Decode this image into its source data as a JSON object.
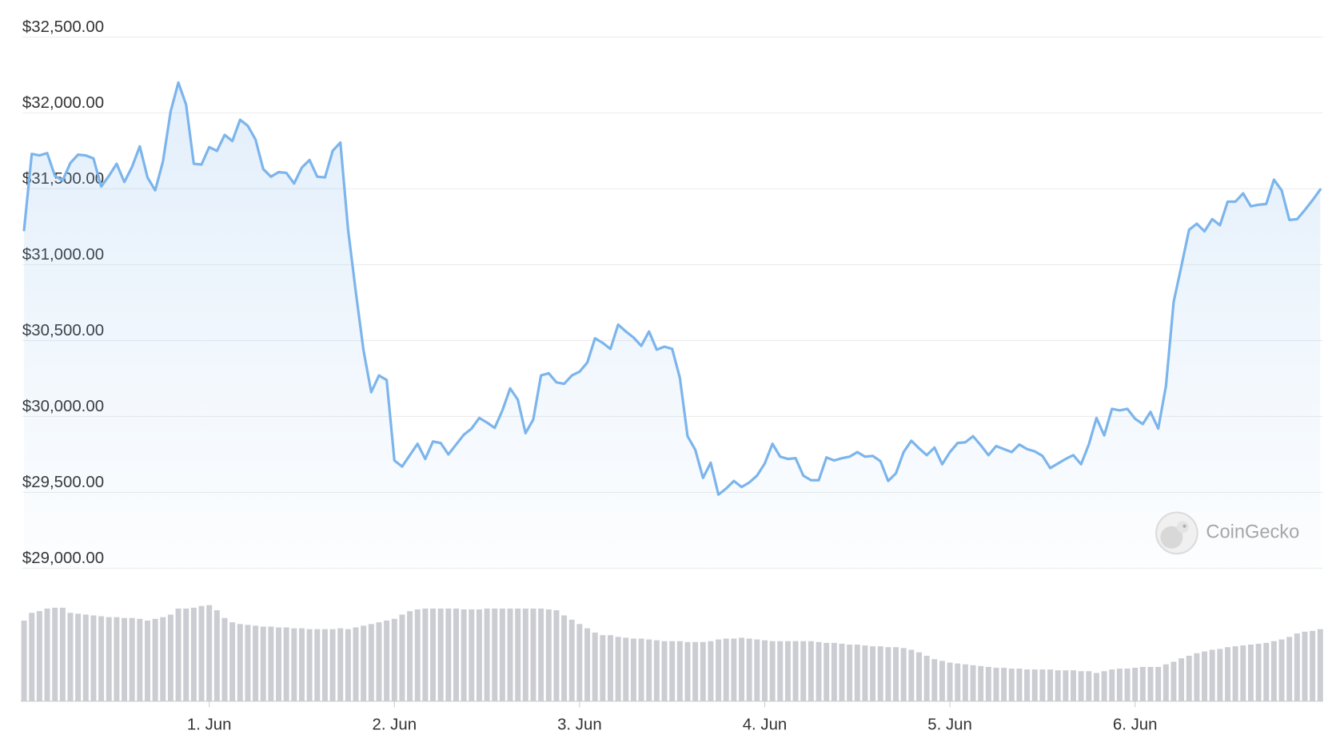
{
  "chart_data": [
    {
      "type": "line",
      "area": true,
      "grid": true,
      "color": "#7cb5ec",
      "watermark": "CoinGecko",
      "ylim": [
        29000,
        32500
      ],
      "yticks": [
        {
          "value": 29000,
          "label": "$29,000.00"
        },
        {
          "value": 29500,
          "label": "$29,500.00"
        },
        {
          "value": 30000,
          "label": "$30,000.00"
        },
        {
          "value": 30500,
          "label": "$30,500.00"
        },
        {
          "value": 31000,
          "label": "$31,000.00"
        },
        {
          "value": 31500,
          "label": "$31,500.00"
        },
        {
          "value": 32000,
          "label": "$32,000.00"
        },
        {
          "value": 32500,
          "label": "$32,500.00"
        }
      ],
      "categories": [
        null,
        null,
        null,
        null,
        null,
        null,
        null,
        null,
        null,
        null,
        null,
        null,
        null,
        null,
        null,
        null,
        null,
        null,
        null,
        null,
        null,
        null,
        null,
        null,
        "1. Jun",
        null,
        null,
        null,
        null,
        null,
        null,
        null,
        null,
        null,
        null,
        null,
        null,
        null,
        null,
        null,
        null,
        null,
        null,
        null,
        null,
        null,
        null,
        null,
        "2. Jun",
        null,
        null,
        null,
        null,
        null,
        null,
        null,
        null,
        null,
        null,
        null,
        null,
        null,
        null,
        null,
        null,
        null,
        null,
        null,
        null,
        null,
        null,
        null,
        "3. Jun",
        null,
        null,
        null,
        null,
        null,
        null,
        null,
        null,
        null,
        null,
        null,
        null,
        null,
        null,
        null,
        null,
        null,
        null,
        null,
        null,
        null,
        null,
        null,
        "4. Jun",
        null,
        null,
        null,
        null,
        null,
        null,
        null,
        null,
        null,
        null,
        null,
        null,
        null,
        null,
        null,
        null,
        null,
        null,
        null,
        null,
        null,
        null,
        null,
        "5. Jun",
        null,
        null,
        null,
        null,
        null,
        null,
        null,
        null,
        null,
        null,
        null,
        null,
        null,
        null,
        null,
        null,
        null,
        null,
        null,
        null,
        null,
        null,
        null,
        "6. Jun",
        null,
        null,
        null,
        null,
        null,
        null,
        null,
        null,
        null,
        null,
        null,
        null,
        null,
        null,
        null,
        null,
        null,
        null,
        null,
        null,
        null,
        null,
        null,
        null
      ],
      "values": [
        31228,
        31730,
        31720,
        31735,
        31585,
        31555,
        31670,
        31725,
        31720,
        31700,
        31515,
        31585,
        31665,
        31545,
        31645,
        31780,
        31575,
        31490,
        31680,
        32010,
        32200,
        32055,
        31665,
        31660,
        31775,
        31750,
        31855,
        31815,
        31955,
        31915,
        31825,
        31630,
        31580,
        31610,
        31605,
        31535,
        31640,
        31690,
        31580,
        31575,
        31750,
        31805,
        31230,
        30820,
        30435,
        30160,
        30270,
        30240,
        29710,
        29670,
        29745,
        29820,
        29720,
        29835,
        29825,
        29750,
        29815,
        29880,
        29920,
        29990,
        29960,
        29925,
        30040,
        30185,
        30110,
        29890,
        29980,
        30270,
        30285,
        30225,
        30215,
        30270,
        30295,
        30355,
        30515,
        30485,
        30445,
        30605,
        30560,
        30520,
        30465,
        30560,
        30440,
        30460,
        30445,
        30255,
        29870,
        29780,
        29595,
        29695,
        29485,
        29525,
        29575,
        29535,
        29565,
        29610,
        29690,
        29820,
        29735,
        29720,
        29725,
        29610,
        29580,
        29580,
        29730,
        29710,
        29725,
        29735,
        29765,
        29735,
        29740,
        29705,
        29575,
        29625,
        29765,
        29840,
        29790,
        29745,
        29795,
        29685,
        29765,
        29825,
        29830,
        29870,
        29810,
        29745,
        29805,
        29785,
        29765,
        29815,
        29785,
        29770,
        29740,
        29660,
        29690,
        29720,
        29745,
        29685,
        29815,
        29990,
        29875,
        30050,
        30040,
        30050,
        29985,
        29950,
        30030,
        29920,
        30200,
        30755,
        30990,
        31230,
        31270,
        31220,
        31300,
        31260,
        31415,
        31415,
        31470,
        31385,
        31395,
        31400,
        31560,
        31490,
        31295,
        31300,
        31360,
        31425,
        31495
      ]
    },
    {
      "type": "bar",
      "color": "#cbcdd3",
      "ylim": [
        0,
        120
      ],
      "values": [
        94,
        103,
        105,
        108,
        109,
        109,
        103,
        102,
        101,
        100,
        99,
        98,
        98,
        97,
        97,
        96,
        94,
        96,
        98,
        101,
        108,
        108,
        109,
        111,
        112,
        106,
        97,
        92,
        90,
        89,
        88,
        87,
        87,
        86,
        86,
        85,
        85,
        84,
        84,
        84,
        84,
        85,
        84,
        86,
        88,
        90,
        92,
        94,
        96,
        101,
        105,
        107,
        108,
        108,
        108,
        108,
        108,
        107,
        107,
        107,
        108,
        108,
        108,
        108,
        108,
        108,
        108,
        108,
        107,
        106,
        100,
        95,
        90,
        85,
        80,
        77,
        77,
        75,
        74,
        73,
        73,
        72,
        71,
        70,
        70,
        70,
        69,
        69,
        69,
        70,
        72,
        73,
        73,
        74,
        73,
        72,
        71,
        70,
        70,
        70,
        70,
        70,
        70,
        69,
        68,
        68,
        67,
        66,
        66,
        65,
        64,
        64,
        63,
        63,
        62,
        60,
        57,
        53,
        49,
        47,
        45,
        44,
        43,
        42,
        41,
        40,
        39,
        39,
        38,
        38,
        37,
        37,
        37,
        37,
        36,
        36,
        36,
        35,
        35,
        33,
        35,
        37,
        38,
        38,
        39,
        40,
        40,
        40,
        43,
        46,
        50,
        53,
        56,
        58,
        60,
        61,
        63,
        64,
        65,
        66,
        67,
        68,
        70,
        72,
        75,
        79,
        81,
        82,
        84
      ]
    }
  ]
}
